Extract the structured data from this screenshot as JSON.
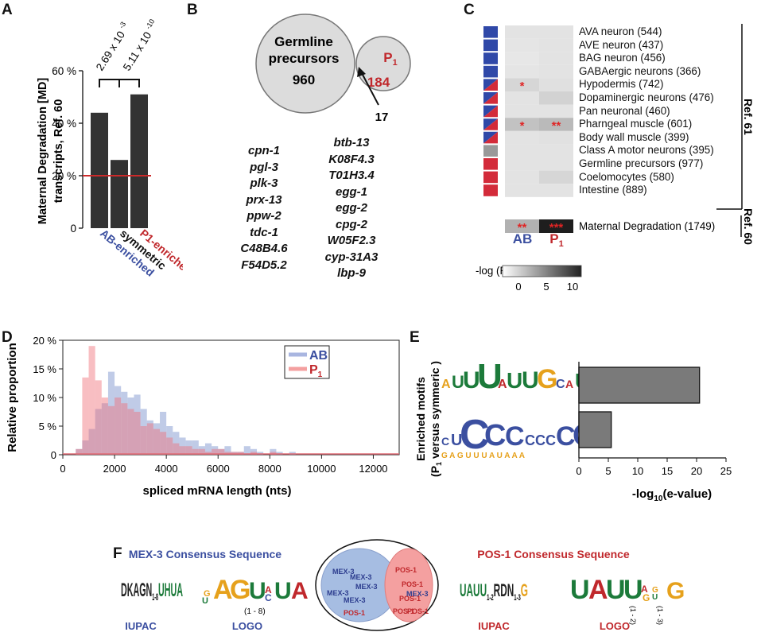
{
  "panels": {
    "A": {
      "label": "A",
      "chart_data": {
        "type": "bar",
        "categories": [
          "AB-enriched",
          "symmetric",
          "P1-enriched"
        ],
        "values": [
          44,
          26,
          51
        ],
        "ylim": [
          0,
          60
        ],
        "yticks": [
          "60 %",
          "40 %",
          "20 %",
          "0"
        ],
        "ylabel_line1": "Maternal Degradation [MD]",
        "ylabel_line2": "transcripts, Ref. 60",
        "reference_line": 20,
        "pvalues": [
          "2.69 x 10-3",
          "5.11 x 10-10"
        ],
        "category_labels": [
          "AB-enriched",
          "symmetric",
          "P1-enriched"
        ],
        "colors": {
          "bar": "#333333",
          "ref": "#cc2a2a",
          "ab": "#3b4fa0",
          "p1": "#c0282c"
        }
      }
    },
    "B": {
      "label": "B",
      "big_circle": {
        "title_line1": "Germline",
        "title_line2": "precursors",
        "count": "960"
      },
      "small_circle": {
        "title": "P",
        "sub": "1",
        "count": "184"
      },
      "overlap": "17",
      "genes_left": [
        "cpn-1",
        "pgl-3",
        "plk-3",
        "prx-13",
        "ppw-2",
        "tdc-1",
        "C48B4.6",
        "F54D5.2"
      ],
      "genes_right": [
        "btb-13",
        "K08F4.3",
        "T01H3.4",
        "egg-1",
        "egg-2",
        "cpg-2",
        "W05F2.3",
        "cyp-31A3",
        "lbp-9"
      ]
    },
    "C": {
      "label": "C",
      "cell_types": [
        "AVA neuron (544)",
        "AVE neuron (437)",
        "BAG neuron (456)",
        "GABAergic neurons (366)",
        "Hypodermis (742)",
        "Dopaminergic neurons (476)",
        "Pan neuronal (460)",
        "Pharngeal muscle (601)",
        "Body wall muscle (399)",
        "Class A motor neurons (395)",
        "Germline precursors (977)",
        "Coelomocytes (580)",
        "Intestine (889)"
      ],
      "indicator": [
        "blue",
        "blue",
        "blue",
        "blue",
        "split",
        "split",
        "split",
        "split",
        "split",
        "gray",
        "red",
        "red",
        "red"
      ],
      "ab_values": [
        0.9,
        0.8,
        0.7,
        0.8,
        1.6,
        0.9,
        0.9,
        2.6,
        0.9,
        0.9,
        0.9,
        0.9,
        0.9
      ],
      "p1_values": [
        0.9,
        0.9,
        0.9,
        0.9,
        1.1,
        1.8,
        0.9,
        3.0,
        1.0,
        0.9,
        0.9,
        1.6,
        0.9
      ],
      "ab_stars": [
        "",
        "",
        "",
        "",
        "*",
        "",
        "",
        "*",
        "",
        "",
        "",
        "",
        ""
      ],
      "p1_stars": [
        "",
        "",
        "",
        "",
        "",
        "",
        "",
        "**",
        "",
        "",
        "",
        "",
        ""
      ],
      "md_label": "Maternal Degradation (1749)",
      "md_ab": {
        "value": 3.5,
        "stars": "**"
      },
      "md_p1": {
        "value": 11,
        "stars": "***"
      },
      "ref61": "Ref. 61",
      "ref60": "Ref. 60",
      "col_ab": "AB",
      "col_p1": "P",
      "col_p1_sub": "1",
      "legend_title": "-log (P value)",
      "legend_ticks": [
        "0",
        "5",
        "10"
      ]
    },
    "D": {
      "label": "D",
      "chart_data": {
        "type": "bar",
        "xlabel": "spliced mRNA length (nts)",
        "ylabel": "Relative proportion",
        "xlim": [
          0,
          13000
        ],
        "ylim": [
          0,
          20
        ],
        "xticks": [
          "0",
          "2000",
          "4000",
          "6000",
          "8000",
          "10000",
          "12000"
        ],
        "yticks": [
          "20 %",
          "15 %",
          "10 %",
          "5 %",
          "0"
        ],
        "bin_width": 250,
        "bin_start": 0,
        "series": [
          {
            "name": "AB",
            "values": [
              0,
              0,
              1,
              2.5,
              4.5,
              8,
              9,
              14.5,
              12,
              11,
              10,
              10.5,
              8,
              6,
              5.5,
              7.5,
              5,
              4,
              3,
              2.5,
              2.5,
              1.5,
              2,
              1.5,
              1,
              1.5,
              0.5,
              0.5,
              1.5,
              1,
              0.5,
              0,
              1,
              0.5,
              0,
              0.5,
              0,
              0,
              0,
              0,
              0,
              0,
              0,
              0,
              0,
              0,
              0,
              0,
              0,
              0,
              0,
              0,
              0,
              0,
              0,
              0,
              0,
              0,
              0,
              0,
              0,
              0,
              0,
              0,
              0,
              0,
              0,
              0,
              0,
              0,
              0,
              0,
              0,
              0,
              0,
              0,
              0,
              0,
              0,
              0,
              0,
              0,
              0,
              0,
              0,
              0,
              0,
              0,
              0,
              0,
              0,
              0,
              0,
              0,
              1,
              0,
              0,
              1,
              0,
              0,
              0,
              1
            ]
          },
          {
            "name": "P1",
            "values": [
              0,
              0,
              1,
              13.5,
              19,
              13,
              10,
              8.5,
              10,
              9,
              8,
              7.5,
              5,
              5.5,
              4.5,
              4,
              3,
              2,
              1.5,
              1.5,
              1,
              1,
              0.5,
              1,
              1,
              0.5,
              0.5,
              0.5,
              0,
              0.5,
              0,
              0,
              0.5,
              0,
              0,
              0,
              0,
              0,
              0,
              0,
              0,
              0,
              0,
              0,
              0,
              0,
              0,
              0,
              0,
              0,
              0,
              0,
              0,
              0,
              0,
              0,
              0,
              0,
              0,
              0,
              0,
              0,
              0,
              0,
              0,
              0,
              0,
              0,
              0,
              0,
              0,
              0,
              0,
              0,
              0,
              0,
              0,
              0,
              0,
              0,
              0,
              0,
              0,
              0,
              0,
              0,
              0,
              0,
              0,
              0,
              0,
              0,
              0,
              0,
              0,
              0,
              0,
              0,
              0,
              0
            ]
          }
        ],
        "legend": {
          "ab": "AB",
          "p1": "P",
          "p1_sub": "1"
        },
        "colors": {
          "ab": "#8c9fd4",
          "p1": "#f08080"
        }
      }
    },
    "E": {
      "label": "E",
      "chart_data": {
        "type": "bar",
        "orientation": "horizontal",
        "values": [
          20.5,
          5.5
        ],
        "xlim": [
          0,
          25
        ],
        "xticks": [
          "0",
          "5",
          "10",
          "15",
          "20",
          "25"
        ],
        "xlabel": "-log",
        "xlabel_sub": "10",
        "xlabel_tail": "(e-value)",
        "ylabel_line1": "Enriched motifs",
        "ylabel_line2_a": "(P",
        "ylabel_line2_sub": "1",
        "ylabel_line2_b": " versus symmeric )"
      },
      "motifs": [
        [
          "U",
          "U",
          "U",
          "A",
          "U",
          "U",
          "G",
          "C",
          "A",
          "U"
        ],
        [
          "C",
          "C",
          "C",
          "C",
          "C",
          "C",
          "C",
          "C",
          "C",
          "C"
        ]
      ]
    },
    "F": {
      "label": "F",
      "mex3_title": "MEX-3 Consensus Sequence",
      "pos1_title": "POS-1 Consensus Sequence",
      "mex3_iupac": {
        "a": "DKAGN",
        "sub": "1-8",
        "b": "UHUA"
      },
      "mex3_logo_range": "(1 - 8)",
      "pos1_iupac": {
        "a": "UAUU",
        "sub1": "1-2",
        "b": "RDN",
        "sub2": "1-3",
        "c": "G"
      },
      "pos1_logo_range1": "(1 - 2)",
      "pos1_logo_range2": "(1 - 3)",
      "iupac_label": "IUPAC",
      "logo_label": "LOGO",
      "ab_label": "AB",
      "p1_label": "P",
      "p1_sub": "1",
      "ab_words": [
        "MEX-3",
        "MEX-3",
        "MEX-3",
        "MEX-3",
        "MEX-3",
        "POS-1"
      ],
      "p1_words": [
        "POS-1",
        "POS-1",
        "POS-1",
        "MEX-3",
        "POS-1",
        "POS-1"
      ]
    }
  }
}
